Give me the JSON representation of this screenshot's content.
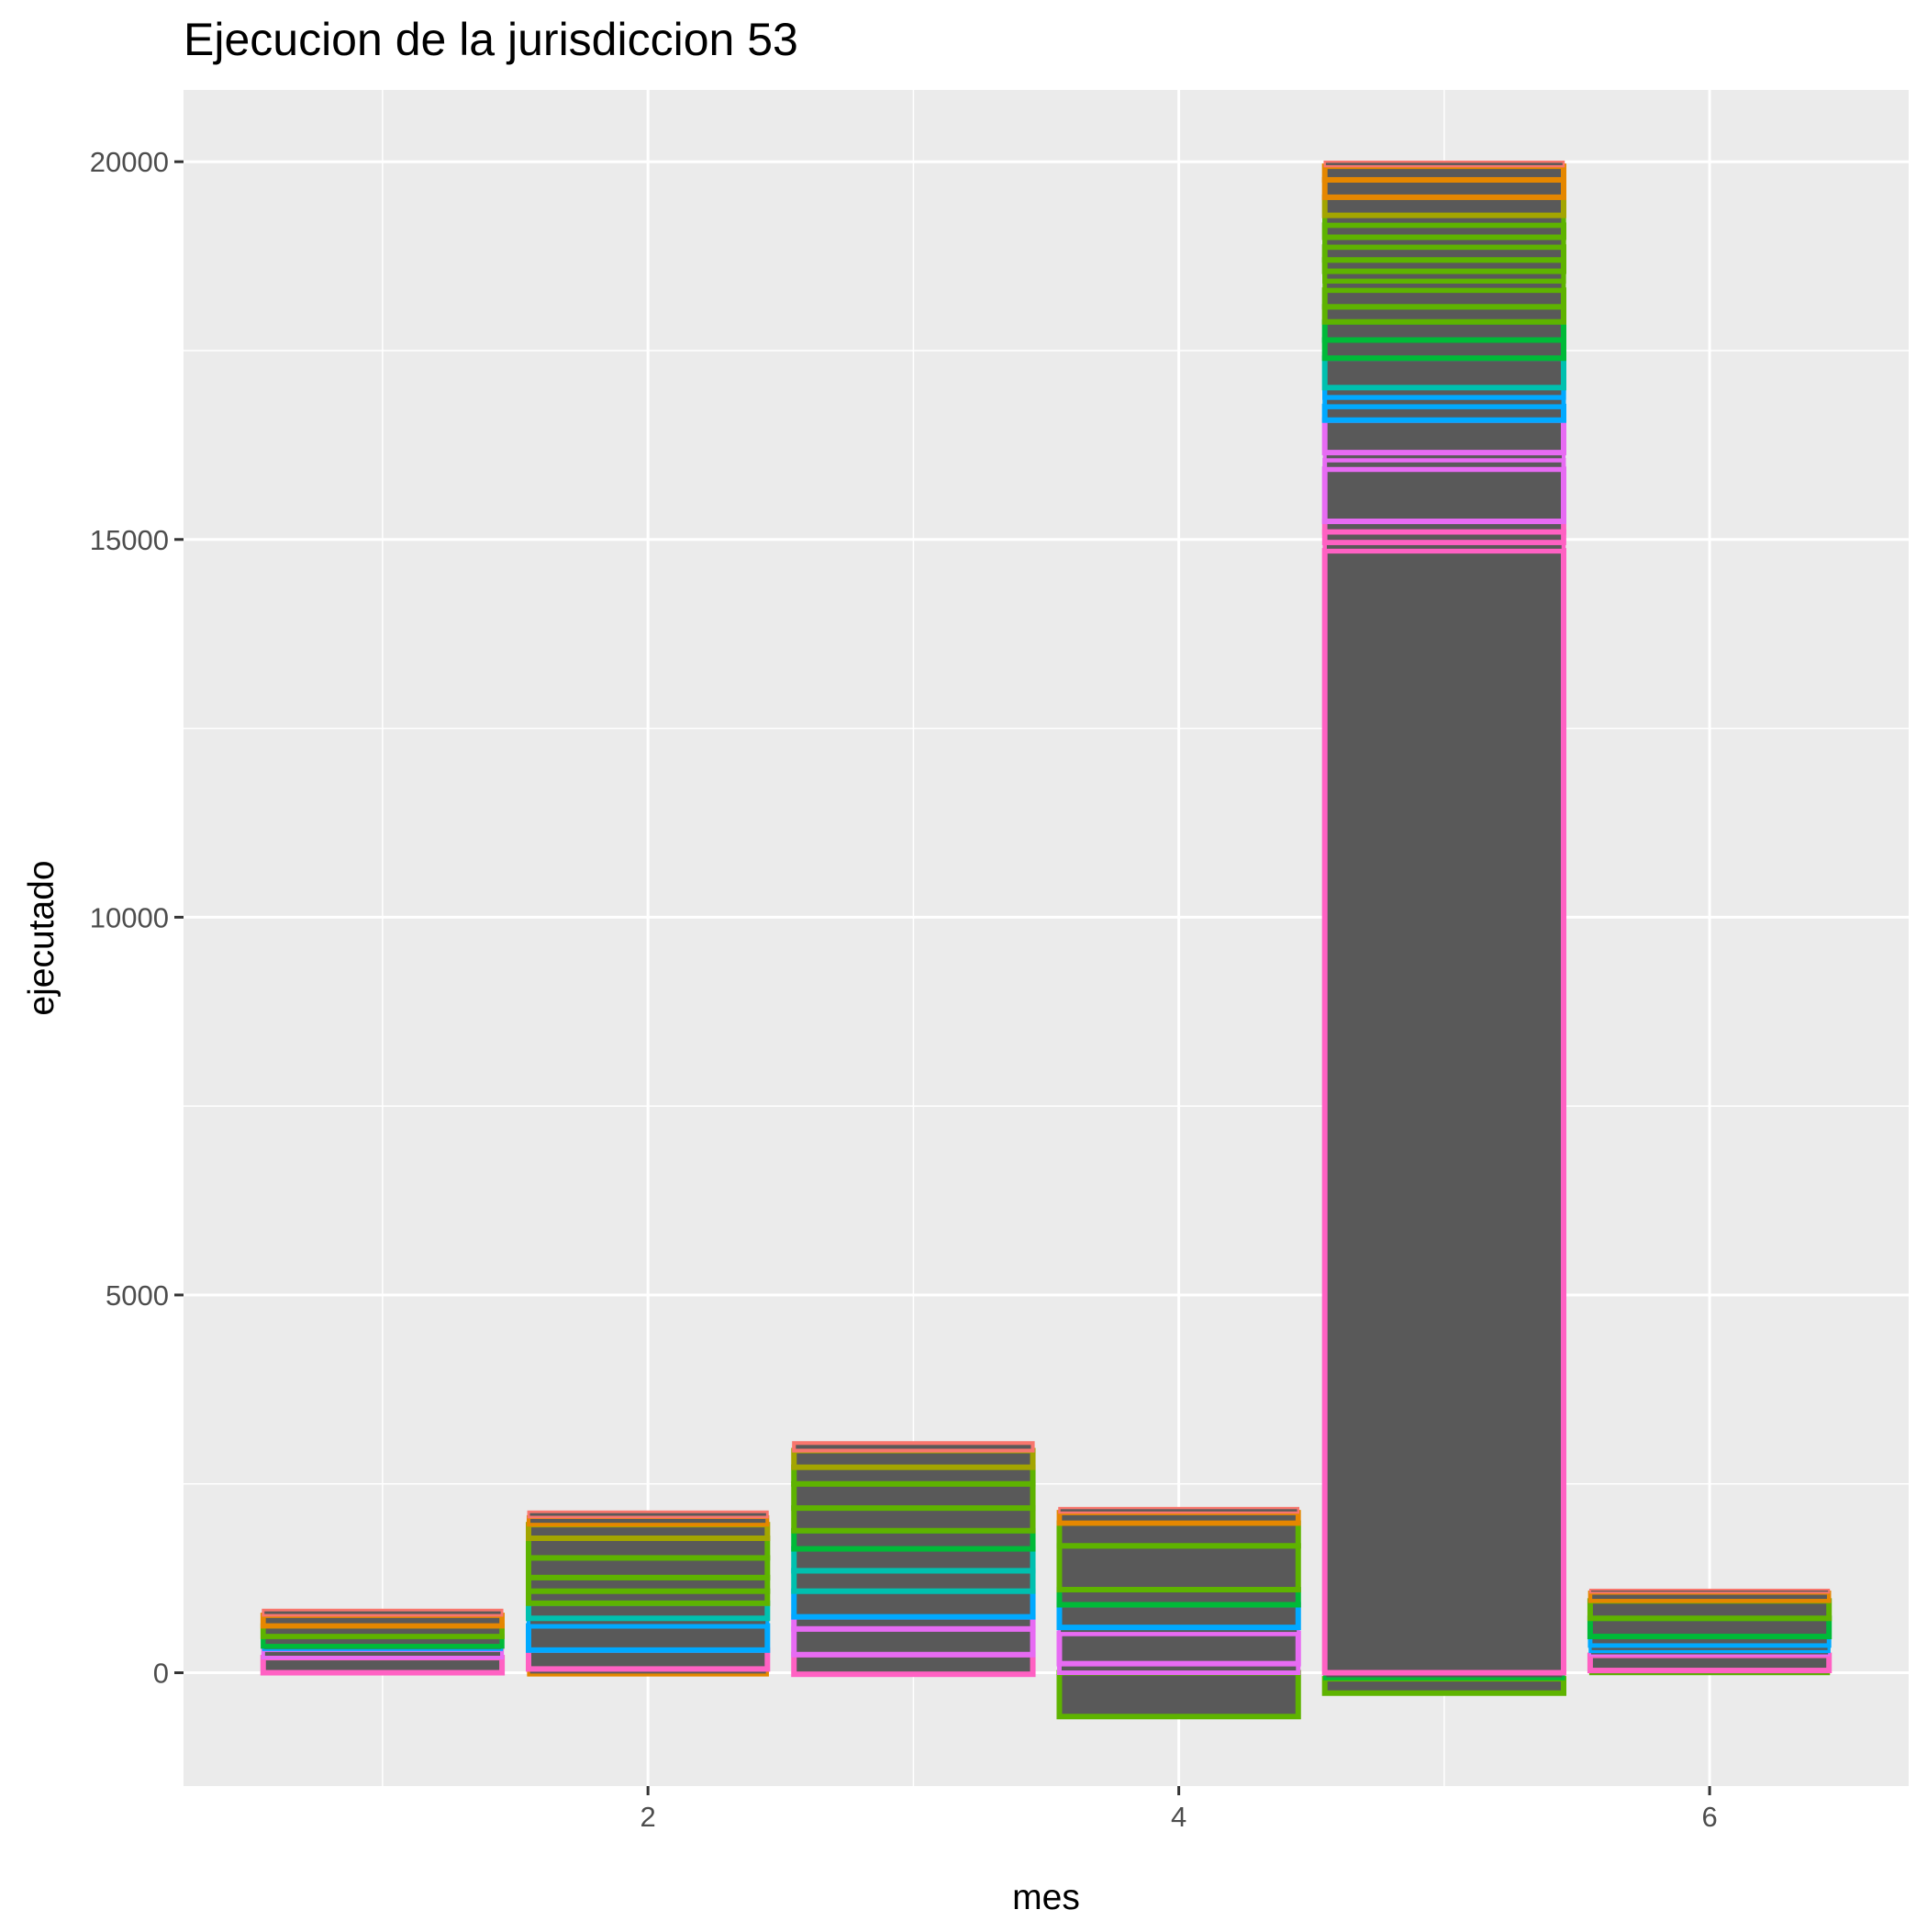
{
  "chart_data": {
    "type": "bar",
    "stacked": true,
    "title": "Ejecucion de la jurisdiccion 53",
    "xlabel": "mes",
    "ylabel": "ejecutado",
    "xlim": [
      0.25,
      6.75
    ],
    "ylim": [
      -1500,
      20950
    ],
    "x_ticks": [
      2,
      4,
      6
    ],
    "x_tick_labels": [
      "2",
      "4",
      "6"
    ],
    "y_ticks": [
      0,
      5000,
      10000,
      15000,
      20000
    ],
    "y_tick_labels": [
      "0",
      "5000",
      "10000",
      "15000",
      "20000"
    ],
    "grid": true,
    "legend": "none",
    "colors": {
      "panel": "#ebebeb",
      "grid": "#ffffff",
      "fill": "#595959",
      "red": "#f8766d",
      "orange": "#e58700",
      "olive": "#a3a500",
      "green": "#5eb300",
      "emerald": "#00ba38",
      "teal": "#00c0af",
      "blue": "#00a9ff",
      "violet": "#e76bf3",
      "magenta": "#ff61c3"
    },
    "months": [
      {
        "x": 1,
        "segments": [
          {
            "from": 0,
            "to": 200,
            "outline": "#ff61c3"
          },
          {
            "from": 200,
            "to": 300,
            "outline": "#e76bf3"
          },
          {
            "from": 300,
            "to": 350,
            "outline": "#00a9ff"
          },
          {
            "from": 350,
            "to": 480,
            "outline": "#00ba38"
          },
          {
            "from": 480,
            "to": 620,
            "outline": "#5eb300"
          },
          {
            "from": 620,
            "to": 760,
            "outline": "#e58700"
          },
          {
            "from": 760,
            "to": 830,
            "outline": "#f8766d"
          }
        ]
      },
      {
        "x": 2,
        "segments": [
          {
            "from": -30,
            "to": 50,
            "outline": "#e58700"
          },
          {
            "from": 50,
            "to": 300,
            "outline": "#ff61c3"
          },
          {
            "from": 300,
            "to": 620,
            "outline": "#00a9ff"
          },
          {
            "from": 620,
            "to": 720,
            "outline": "#00a9ff"
          },
          {
            "from": 720,
            "to": 920,
            "outline": "#00c0af"
          },
          {
            "from": 920,
            "to": 1080,
            "outline": "#5eb300"
          },
          {
            "from": 1080,
            "to": 1260,
            "outline": "#5eb300"
          },
          {
            "from": 1260,
            "to": 1520,
            "outline": "#5eb300"
          },
          {
            "from": 1520,
            "to": 1780,
            "outline": "#5eb300"
          },
          {
            "from": 1780,
            "to": 1960,
            "outline": "#a3a500"
          },
          {
            "from": 1960,
            "to": 2060,
            "outline": "#e58700"
          },
          {
            "from": 2060,
            "to": 2130,
            "outline": "#f8766d"
          }
        ]
      },
      {
        "x": 3,
        "segments": [
          {
            "from": -20,
            "to": 240,
            "outline": "#ff61c3"
          },
          {
            "from": 240,
            "to": 580,
            "outline": "#e76bf3"
          },
          {
            "from": 580,
            "to": 740,
            "outline": "#e76bf3"
          },
          {
            "from": 740,
            "to": 1080,
            "outline": "#00a9ff"
          },
          {
            "from": 1080,
            "to": 1350,
            "outline": "#00c0af"
          },
          {
            "from": 1350,
            "to": 1640,
            "outline": "#00c0af"
          },
          {
            "from": 1640,
            "to": 1880,
            "outline": "#00ba38"
          },
          {
            "from": 1880,
            "to": 2180,
            "outline": "#5eb300"
          },
          {
            "from": 2180,
            "to": 2500,
            "outline": "#5eb300"
          },
          {
            "from": 2500,
            "to": 2720,
            "outline": "#5eb300"
          },
          {
            "from": 2720,
            "to": 2940,
            "outline": "#a3a500"
          },
          {
            "from": 2940,
            "to": 3040,
            "outline": "#f8766d"
          }
        ]
      },
      {
        "x": 4,
        "segments": [
          {
            "from": -580,
            "to": 0,
            "outline": "#5eb300"
          },
          {
            "from": 0,
            "to": 120,
            "outline": "#e76bf3"
          },
          {
            "from": 120,
            "to": 520,
            "outline": "#e76bf3"
          },
          {
            "from": 520,
            "to": 600,
            "outline": "#e76bf3"
          },
          {
            "from": 600,
            "to": 900,
            "outline": "#00a9ff"
          },
          {
            "from": 900,
            "to": 1100,
            "outline": "#00ba38"
          },
          {
            "from": 1100,
            "to": 1680,
            "outline": "#5eb300"
          },
          {
            "from": 1680,
            "to": 1980,
            "outline": "#5eb300"
          },
          {
            "from": 1980,
            "to": 2120,
            "outline": "#e58700"
          },
          {
            "from": 2120,
            "to": 2180,
            "outline": "#f8766d"
          }
        ]
      },
      {
        "x": 5,
        "segments": [
          {
            "from": -270,
            "to": -80,
            "outline": "#5eb300"
          },
          {
            "from": -80,
            "to": 0,
            "outline": "#00ba38"
          },
          {
            "from": 0,
            "to": 14850,
            "outline": "#ff61c3"
          },
          {
            "from": 14850,
            "to": 14960,
            "outline": "#ff61c3"
          },
          {
            "from": 14960,
            "to": 15100,
            "outline": "#ff61c3"
          },
          {
            "from": 15100,
            "to": 15240,
            "outline": "#ff61c3"
          },
          {
            "from": 15240,
            "to": 15930,
            "outline": "#e76bf3"
          },
          {
            "from": 15930,
            "to": 16050,
            "outline": "#e76bf3"
          },
          {
            "from": 16050,
            "to": 16150,
            "outline": "#e76bf3"
          },
          {
            "from": 16150,
            "to": 16580,
            "outline": "#e76bf3"
          },
          {
            "from": 16580,
            "to": 16760,
            "outline": "#00a9ff"
          },
          {
            "from": 16760,
            "to": 16880,
            "outline": "#00a9ff"
          },
          {
            "from": 16880,
            "to": 17010,
            "outline": "#00a9ff"
          },
          {
            "from": 17010,
            "to": 17400,
            "outline": "#00c0af"
          },
          {
            "from": 17400,
            "to": 17640,
            "outline": "#00ba38"
          },
          {
            "from": 17640,
            "to": 17880,
            "outline": "#00ba38"
          },
          {
            "from": 17880,
            "to": 18080,
            "outline": "#5eb300"
          },
          {
            "from": 18080,
            "to": 18300,
            "outline": "#5eb300"
          },
          {
            "from": 18300,
            "to": 18420,
            "outline": "#5eb300"
          },
          {
            "from": 18420,
            "to": 18550,
            "outline": "#5eb300"
          },
          {
            "from": 18550,
            "to": 18700,
            "outline": "#5eb300"
          },
          {
            "from": 18700,
            "to": 18870,
            "outline": "#5eb300"
          },
          {
            "from": 18870,
            "to": 19000,
            "outline": "#5eb300"
          },
          {
            "from": 19000,
            "to": 19160,
            "outline": "#5eb300"
          },
          {
            "from": 19160,
            "to": 19290,
            "outline": "#5eb300"
          },
          {
            "from": 19290,
            "to": 19530,
            "outline": "#a3a500"
          },
          {
            "from": 19530,
            "to": 19760,
            "outline": "#e58700"
          },
          {
            "from": 19760,
            "to": 19940,
            "outline": "#e58700"
          },
          {
            "from": 19940,
            "to": 20000,
            "outline": "#f8766d"
          }
        ]
      },
      {
        "x": 6,
        "segments": [
          {
            "from": -20,
            "to": 30,
            "outline": "#5eb300"
          },
          {
            "from": 30,
            "to": 230,
            "outline": "#ff61c3"
          },
          {
            "from": 230,
            "to": 280,
            "outline": "#e76bf3"
          },
          {
            "from": 280,
            "to": 360,
            "outline": "#00a9ff"
          },
          {
            "from": 360,
            "to": 480,
            "outline": "#00a9ff"
          },
          {
            "from": 480,
            "to": 720,
            "outline": "#00ba38"
          },
          {
            "from": 720,
            "to": 950,
            "outline": "#5eb300"
          },
          {
            "from": 950,
            "to": 1060,
            "outline": "#e58700"
          },
          {
            "from": 1060,
            "to": 1100,
            "outline": "#f8766d"
          }
        ]
      }
    ]
  }
}
